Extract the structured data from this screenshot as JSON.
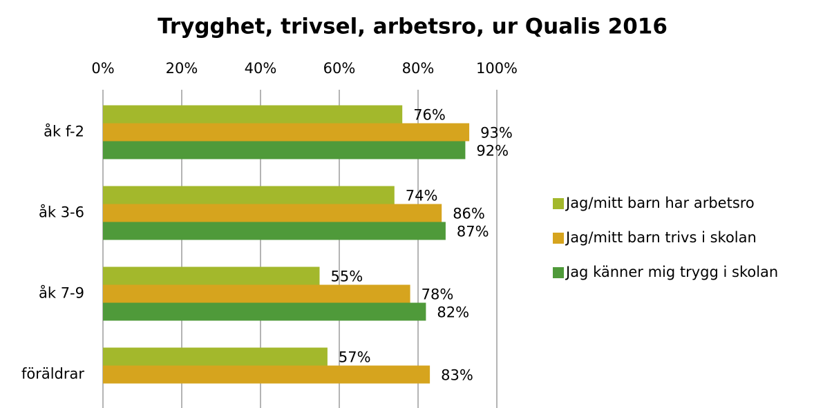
{
  "chart_data": {
    "type": "hbar",
    "title": "Trygghet, trivsel, arbetsro, ur Qualis 2016",
    "categories": [
      "åk f-2",
      "åk 3-6",
      "åk 7-9",
      "föräldrar"
    ],
    "series": [
      {
        "name": "Jag/mitt barn har arbetsro",
        "color": "#a3b82c",
        "values": [
          76,
          74,
          55,
          57
        ],
        "value_labels": [
          "76%",
          "74%",
          "55%",
          "57%"
        ]
      },
      {
        "name": "Jag/mitt barn trivs i skolan",
        "color": "#d6a41e",
        "values": [
          93,
          86,
          78,
          83
        ],
        "value_labels": [
          "93%",
          "86%",
          "78%",
          "83%"
        ]
      },
      {
        "name": "Jag känner mig trygg i skolan",
        "color": "#4f9a3a",
        "values": [
          92,
          87,
          82,
          null
        ],
        "value_labels": [
          "92%",
          "87%",
          "82%",
          null
        ]
      }
    ],
    "xlim": [
      0,
      100
    ],
    "xticks": [
      {
        "value": 0,
        "label": "0%"
      },
      {
        "value": 20,
        "label": "20%"
      },
      {
        "value": 40,
        "label": "40%"
      },
      {
        "value": 60,
        "label": "60%"
      },
      {
        "value": 80,
        "label": "80%"
      },
      {
        "value": 100,
        "label": "100%"
      }
    ],
    "grid": true,
    "legend": "right"
  }
}
